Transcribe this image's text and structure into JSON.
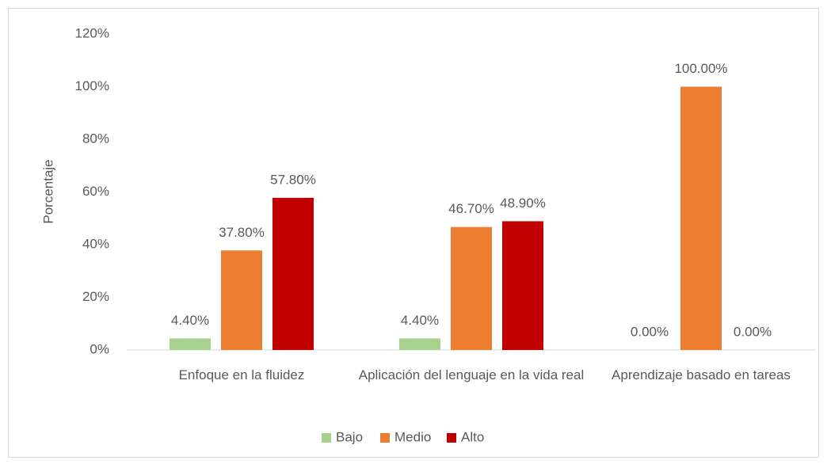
{
  "chart_data": {
    "type": "bar",
    "categories": [
      "Enfoque en la fluidez",
      "Aplicación del lenguaje en la vida real",
      "Aprendizaje basado en tareas"
    ],
    "series": [
      {
        "name": "Bajo",
        "color": "#a9d18e",
        "values": [
          4.4,
          4.4,
          0
        ],
        "value_labels": [
          "4.40%",
          "4.40%",
          "0.00%"
        ]
      },
      {
        "name": "Medio",
        "color": "#ed7d31",
        "values": [
          37.8,
          46.7,
          100
        ],
        "value_labels": [
          "37.80%",
          "46.70%",
          "100.00%"
        ]
      },
      {
        "name": "Alto",
        "color": "#c00000",
        "values": [
          57.8,
          48.9,
          0
        ],
        "value_labels": [
          "57.80%",
          "48.90%",
          "0.00%"
        ]
      }
    ],
    "y_label": "Porcentaje",
    "ylim": [
      0,
      120
    ],
    "yticks": [
      {
        "value": 0,
        "label": "0%"
      },
      {
        "value": 20,
        "label": "20%"
      },
      {
        "value": 40,
        "label": "40%"
      },
      {
        "value": 60,
        "label": "60%"
      },
      {
        "value": 80,
        "label": "80%"
      },
      {
        "value": 100,
        "label": "100%"
      },
      {
        "value": 120,
        "label": "120%"
      }
    ],
    "grid": false,
    "legend": "bottom"
  }
}
